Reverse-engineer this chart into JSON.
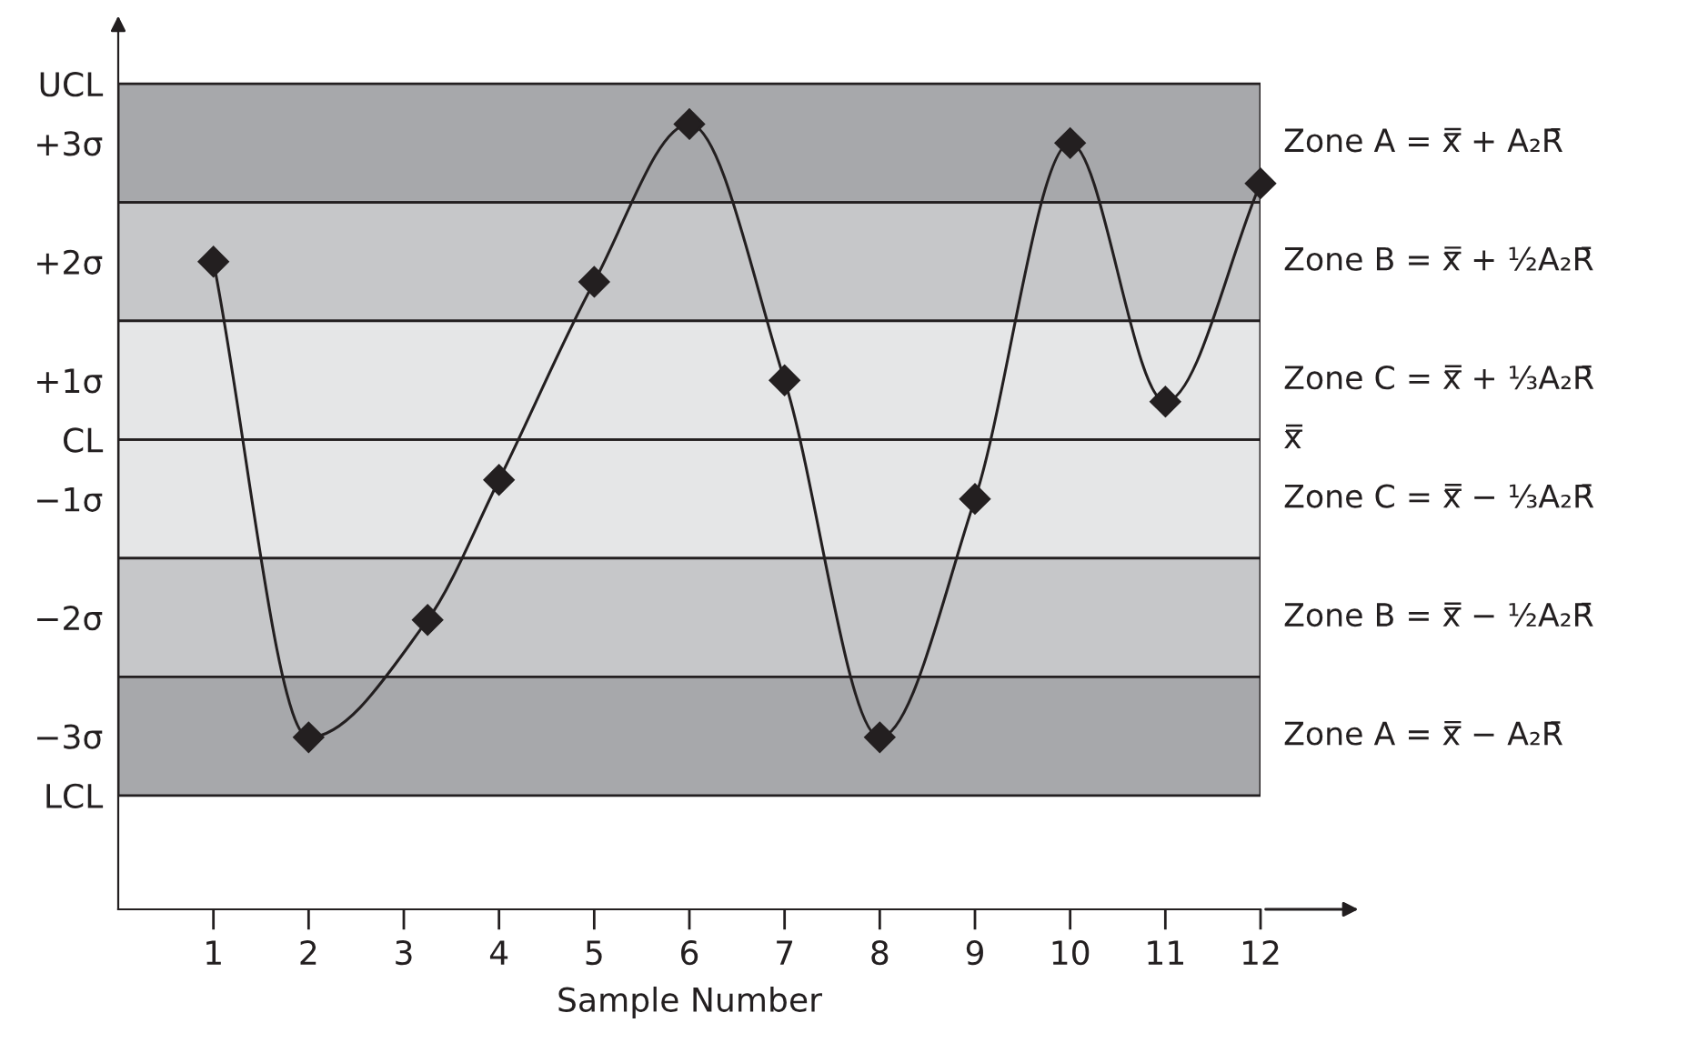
{
  "chart_data": {
    "type": "line",
    "xlabel": "Sample Number",
    "x": [
      1,
      2,
      3.25,
      4,
      5,
      6,
      7,
      8,
      9,
      10,
      11,
      12
    ],
    "series": [
      {
        "color": "#231f20",
        "values": [
          1.5,
          -2.51,
          -1.52,
          -0.34,
          1.33,
          2.66,
          0.5,
          -2.51,
          -0.5,
          2.5,
          0.32,
          2.16
        ]
      }
    ],
    "marker": "diamond",
    "line_style": "solid",
    "xlim": [
      0,
      12
    ],
    "xticks": [
      1,
      2,
      3,
      4,
      5,
      6,
      7,
      8,
      9,
      10,
      11,
      12
    ],
    "ylim": [
      -3.96,
      3.43
    ],
    "yticks": [
      {
        "value": 3,
        "label": "UCL"
      },
      {
        "value": 2.5,
        "label": "+3σ"
      },
      {
        "value": 1.5,
        "label": "+2σ"
      },
      {
        "value": 0.5,
        "label": "+1σ"
      },
      {
        "value": 0,
        "label": "CL"
      },
      {
        "value": -0.5,
        "label": "−1σ"
      },
      {
        "value": -1.5,
        "label": "−2σ"
      },
      {
        "value": -2.5,
        "label": "−3σ"
      },
      {
        "value": -3,
        "label": "LCL"
      }
    ],
    "bands": [
      {
        "axis": "y",
        "from": 2,
        "to": 3,
        "color": "#a7a8ab",
        "label": "Zone A = x̿ + A₂R̄"
      },
      {
        "axis": "y",
        "from": 1,
        "to": 2,
        "color": "#c6c7c9",
        "label": "Zone B = x̿ + ½A₂R̄"
      },
      {
        "axis": "y",
        "from": 0,
        "to": 1,
        "color": "#e5e6e7",
        "label": "Zone C = x̿ + ⅓A₂R̄"
      },
      {
        "axis": "y",
        "from": -1,
        "to": 0,
        "color": "#e5e6e7",
        "label": "Zone C = x̿ − ⅓A₂R̄"
      },
      {
        "axis": "y",
        "from": -2,
        "to": -1,
        "color": "#c6c7c9",
        "label": "Zone B = x̿ − ½A₂R̄"
      },
      {
        "axis": "y",
        "from": -3,
        "to": -2,
        "color": "#a7a8ab",
        "label": "Zone A = x̿ − A₂R̄"
      }
    ],
    "ref_lines": [
      {
        "axis": "y",
        "value": 0,
        "label": "x̿",
        "color": "#231f20"
      }
    ]
  }
}
